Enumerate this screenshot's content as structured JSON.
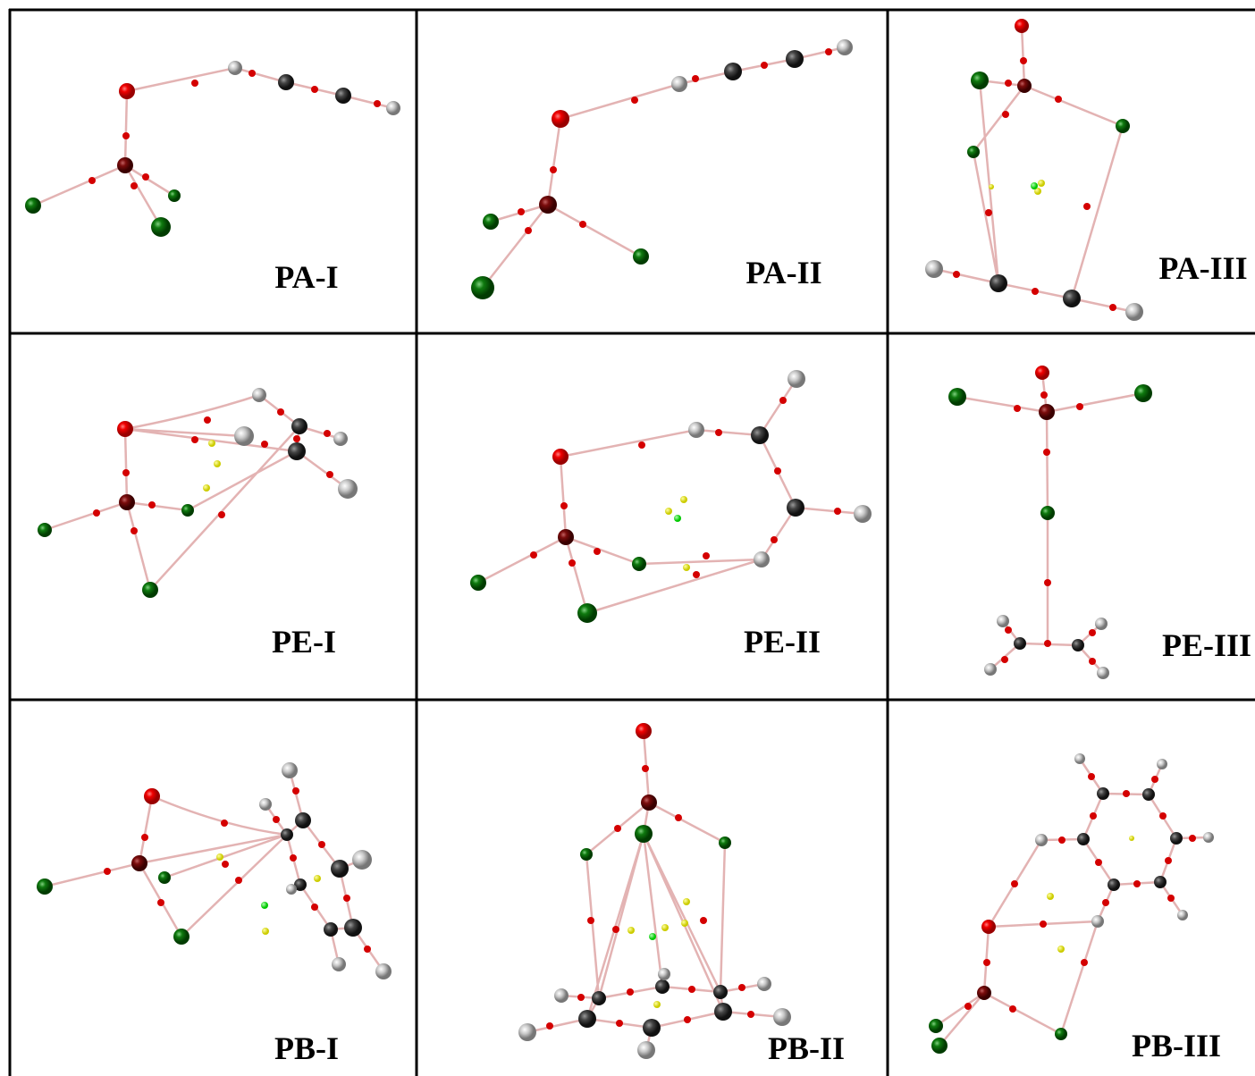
{
  "grid": {
    "rows": [
      [
        "PA-I",
        "PA-II",
        "PA-III"
      ],
      [
        "PE-I",
        "PE-II",
        "PE-III"
      ],
      [
        "PB-I",
        "PB-II",
        "PB-III"
      ]
    ]
  }
}
